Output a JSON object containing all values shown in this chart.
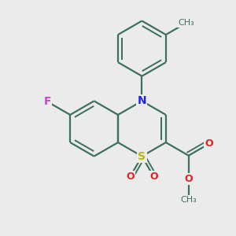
{
  "bg_color": "#ebebeb",
  "bond_color": "#3d7060",
  "bond_width": 1.6,
  "atom_colors": {
    "F": "#cc44cc",
    "N": "#2222ee",
    "S": "#b8b800",
    "O": "#dd2222",
    "C": "#3d7060"
  },
  "figsize": [
    3.0,
    3.0
  ],
  "dpi": 100
}
